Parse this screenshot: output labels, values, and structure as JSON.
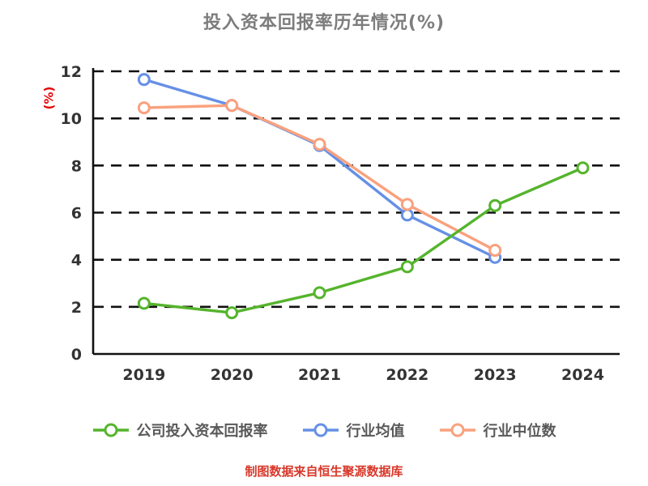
{
  "title": "投入资本回报率历年情况(%)",
  "ylabel": "(%)",
  "source_note": "制图数据来自恒生聚源数据库",
  "chart_data": {
    "type": "line",
    "title": "投入资本回报率历年情况(%)",
    "categories": [
      "2019",
      "2020",
      "2021",
      "2022",
      "2023",
      "2024"
    ],
    "series": [
      {
        "name": "公司投入资本回报率",
        "color": "#55b42c",
        "values": [
          2.15,
          1.75,
          2.6,
          3.7,
          6.3,
          7.9
        ]
      },
      {
        "name": "行业均值",
        "color": "#6590e6",
        "values": [
          11.65,
          10.55,
          8.85,
          5.9,
          4.1,
          null
        ]
      },
      {
        "name": "行业中位数",
        "color": "#f9a17e",
        "values": [
          10.45,
          10.55,
          8.9,
          6.35,
          4.4,
          null
        ]
      }
    ],
    "ylim": [
      0,
      12
    ],
    "yticks": [
      0,
      2,
      4,
      6,
      8,
      10,
      12
    ],
    "grid": "dashed-horizontal",
    "legend_position": "bottom",
    "marker": "hollow-circle",
    "axis_color": "#111111",
    "tick_label_color": "#333333"
  }
}
